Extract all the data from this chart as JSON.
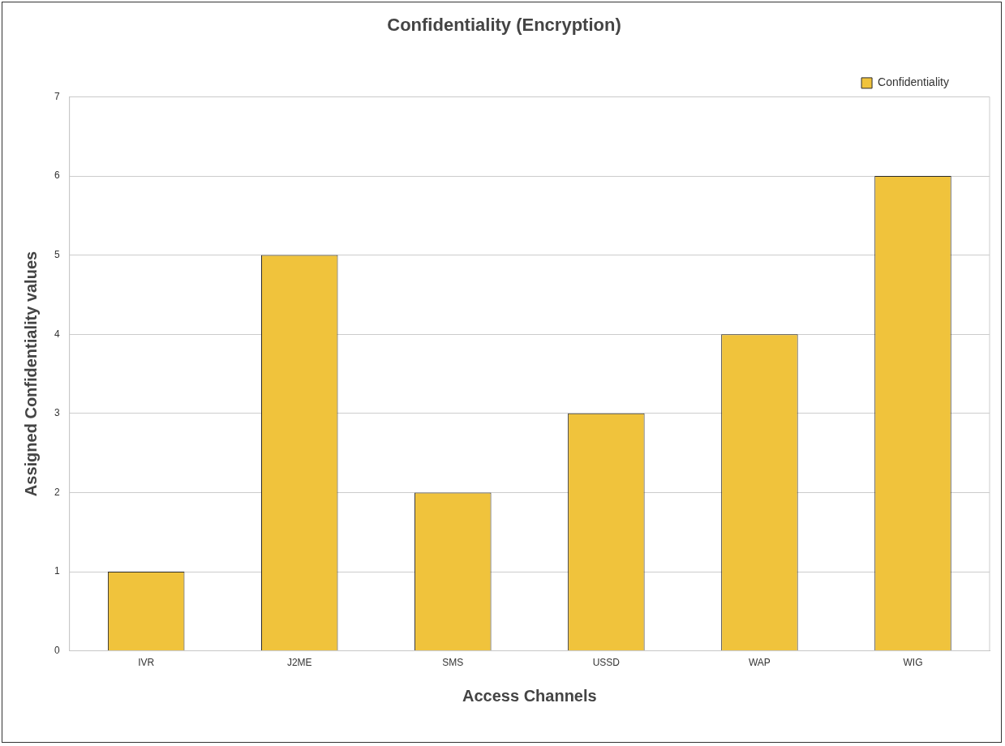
{
  "chart_data": {
    "type": "bar",
    "title": "Confidentiality (Encryption)",
    "xlabel": "Access Channels",
    "ylabel": "Assigned Confidentiality values",
    "categories": [
      "IVR",
      "J2ME",
      "SMS",
      "USSD",
      "WAP",
      "WIG"
    ],
    "series": [
      {
        "name": "Confidentiality",
        "color": "#f0c33c",
        "values": [
          1,
          5,
          2,
          3,
          4,
          6
        ]
      }
    ],
    "ylim": [
      0,
      7
    ],
    "yticks": [
      0,
      1,
      2,
      3,
      4,
      5,
      6,
      7
    ],
    "grid": "y",
    "legend": "top right"
  }
}
